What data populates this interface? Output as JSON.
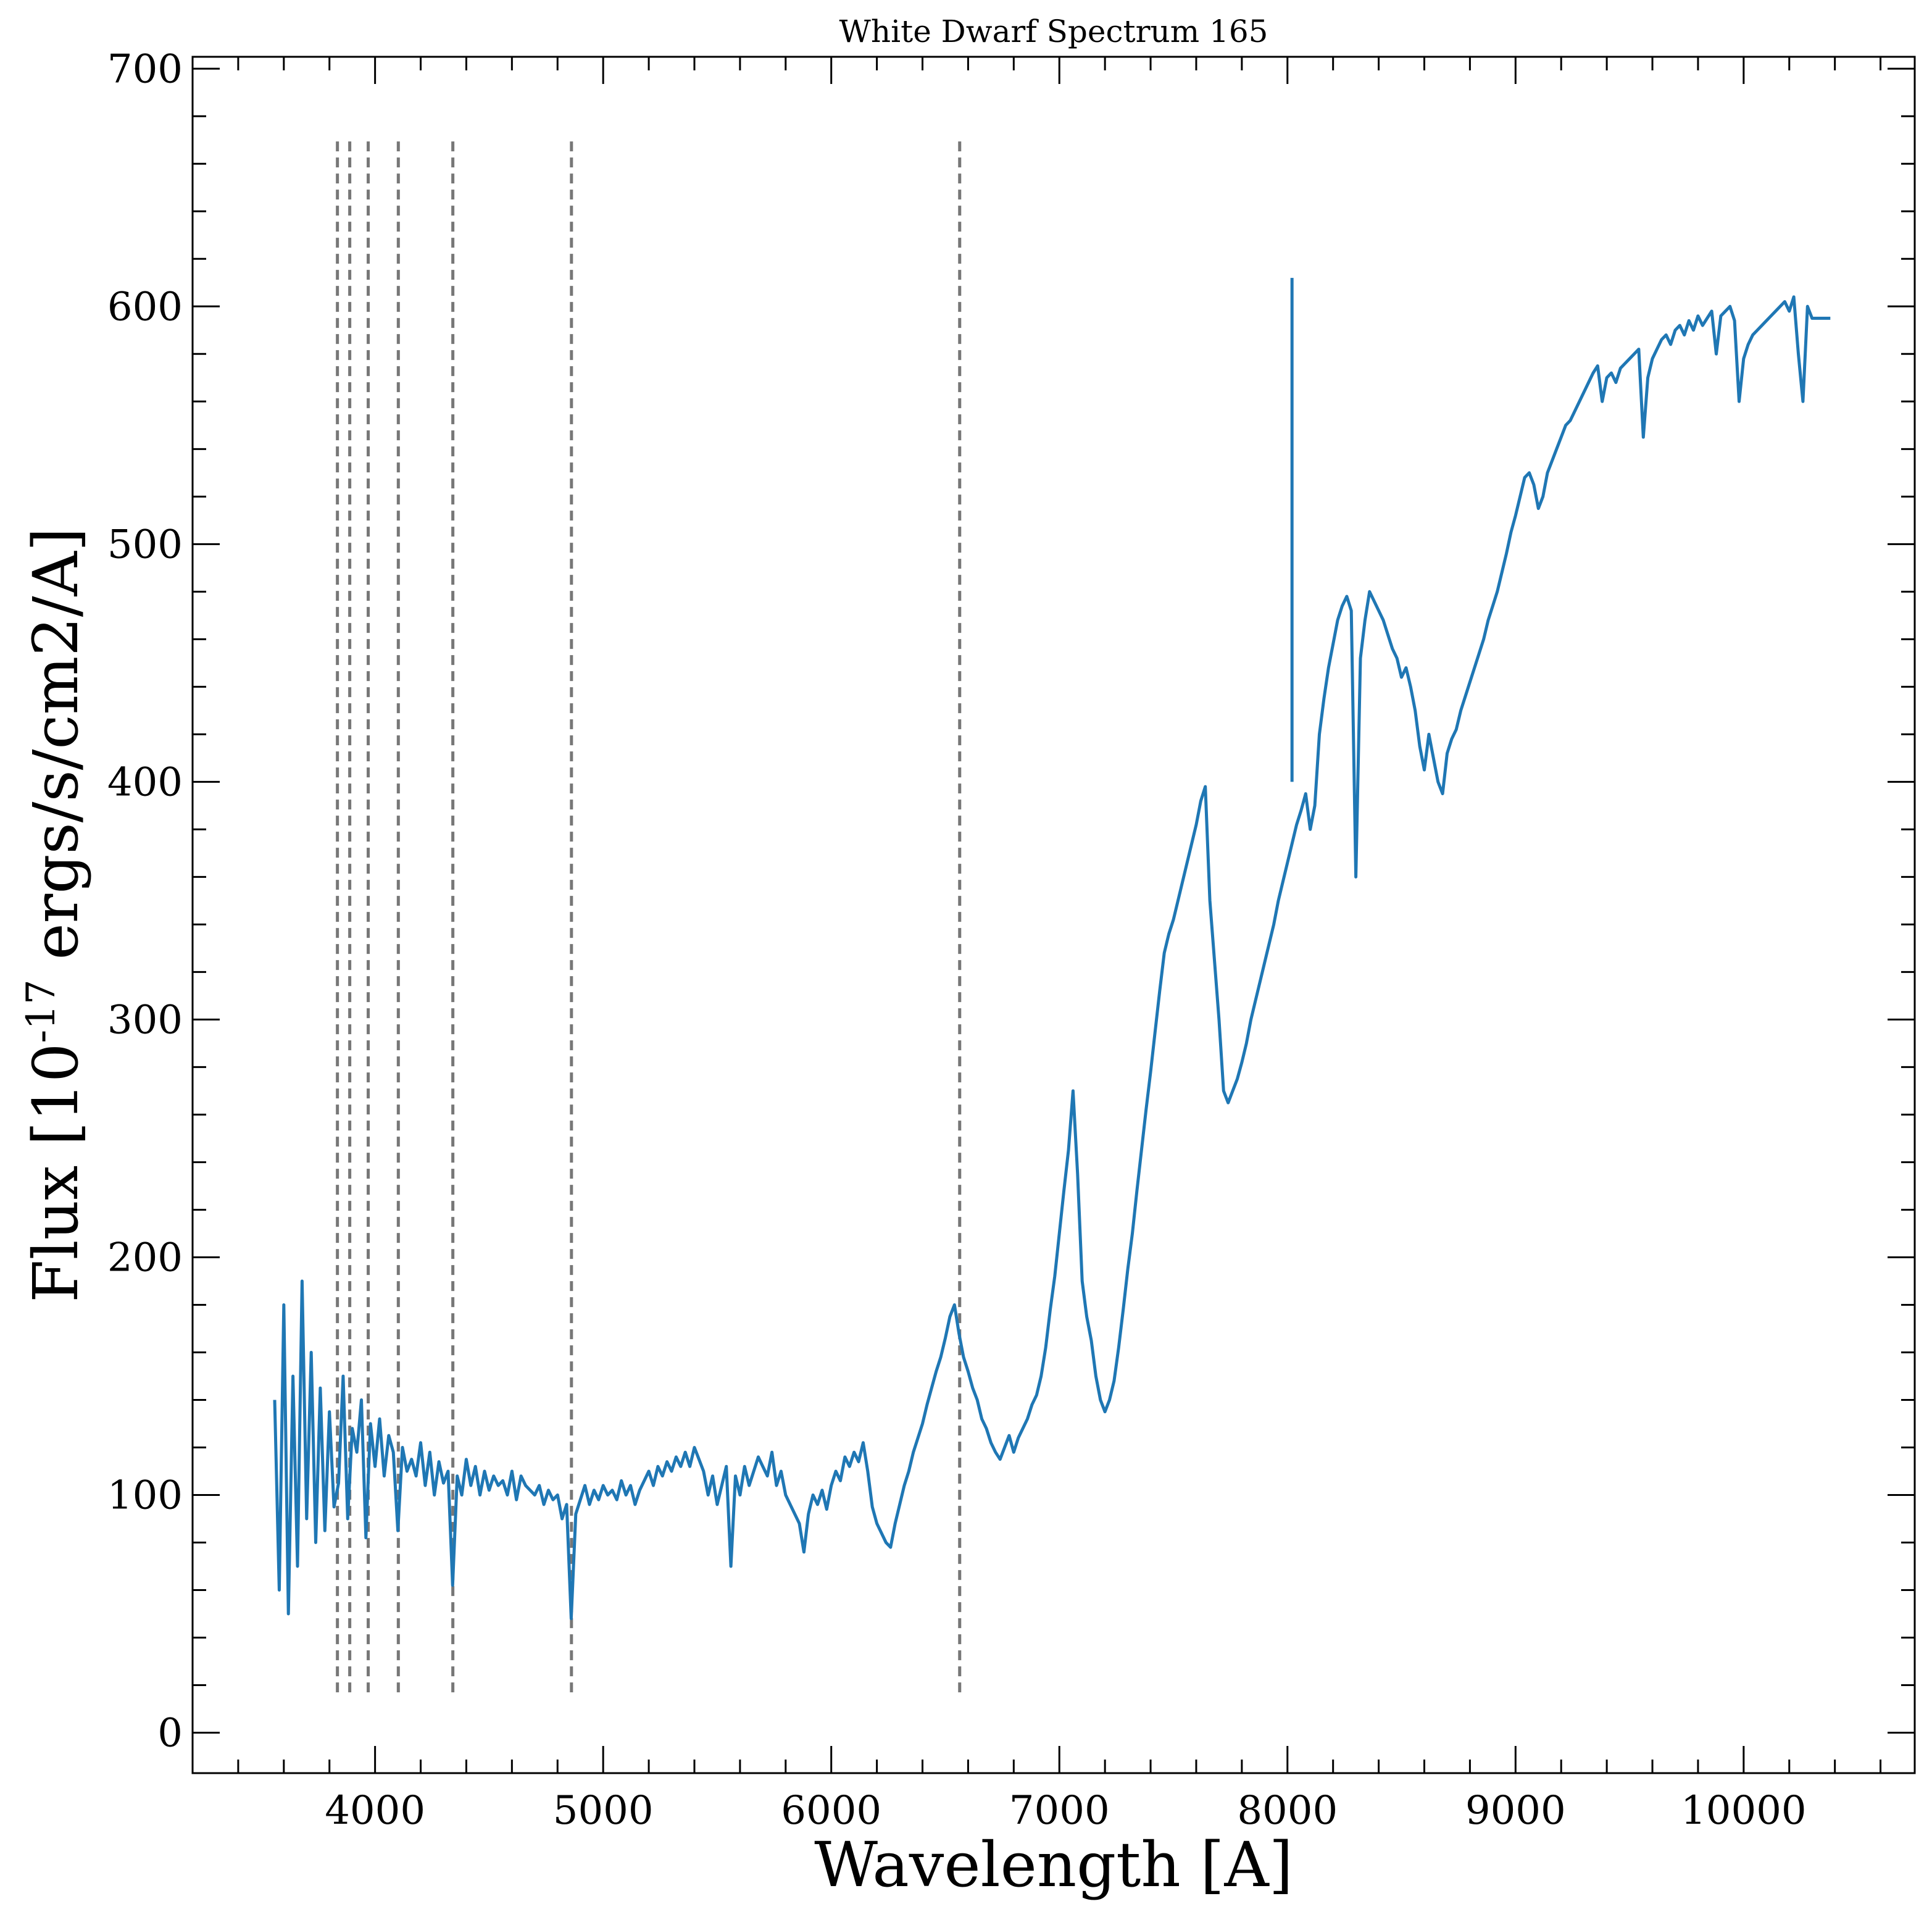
{
  "chart_data": {
    "type": "line",
    "title": "White Dwarf Spectrum 165",
    "xlabel": "Wavelength [A]",
    "ylabel": {
      "prefix": "Flux [10",
      "exponent": "-17",
      "suffix": " ergs/s/cm2/A]"
    },
    "xlim": [
      3200,
      10750
    ],
    "ylim": [
      -17,
      705
    ],
    "xticks": [
      4000,
      5000,
      6000,
      7000,
      8000,
      9000,
      10000
    ],
    "yticks": [
      0,
      100,
      200,
      300,
      400,
      500,
      600,
      700
    ],
    "x_minor_step": 200,
    "y_minor_step": 20,
    "grid": false,
    "legend": "none",
    "colors": {
      "spectrum": "#1f77b4",
      "reference_lines": "#777777"
    },
    "reference_lines": {
      "x": [
        3835,
        3889,
        3970,
        4102,
        4341,
        4861,
        6563
      ],
      "y_range": [
        17,
        670
      ],
      "style": "dashed"
    },
    "series": [
      {
        "x": [
          3560,
          3580,
          3600,
          3620,
          3640,
          3660,
          3680,
          3700,
          3720,
          3740,
          3760,
          3780,
          3800,
          3820,
          3840,
          3860,
          3880,
          3900,
          3920,
          3940,
          3960,
          3980,
          4000,
          4020,
          4040,
          4060,
          4080,
          4100,
          4120,
          4140,
          4160,
          4180,
          4200,
          4220,
          4240,
          4260,
          4280,
          4300,
          4320,
          4340,
          4360,
          4380,
          4400,
          4420,
          4440,
          4460,
          4480,
          4500,
          4520,
          4540,
          4560,
          4580,
          4600,
          4620,
          4640,
          4660,
          4680,
          4700,
          4720,
          4740,
          4760,
          4780,
          4800,
          4820,
          4840,
          4860,
          4880,
          4900,
          4920,
          4940,
          4960,
          4980,
          5000,
          5020,
          5040,
          5060,
          5080,
          5100,
          5120,
          5140,
          5160,
          5180,
          5200,
          5220,
          5240,
          5260,
          5280,
          5300,
          5320,
          5340,
          5360,
          5380,
          5400,
          5420,
          5440,
          5460,
          5480,
          5500,
          5520,
          5540,
          5560,
          5580,
          5600,
          5620,
          5640,
          5660,
          5680,
          5700,
          5720,
          5740,
          5760,
          5780,
          5800,
          5820,
          5840,
          5860,
          5880,
          5900,
          5920,
          5940,
          5960,
          5980,
          6000,
          6020,
          6040,
          6060,
          6080,
          6100,
          6120,
          6140,
          6160,
          6180,
          6200,
          6220,
          6240,
          6260,
          6280,
          6300,
          6320,
          6340,
          6360,
          6380,
          6400,
          6420,
          6440,
          6460,
          6480,
          6500,
          6520,
          6540,
          6560,
          6580,
          6600,
          6620,
          6640,
          6660,
          6680,
          6700,
          6720,
          6740,
          6760,
          6780,
          6800,
          6820,
          6840,
          6860,
          6880,
          6900,
          6920,
          6940,
          6960,
          6980,
          7000,
          7020,
          7040,
          7060,
          7080,
          7100,
          7120,
          7140,
          7160,
          7180,
          7200,
          7220,
          7240,
          7260,
          7280,
          7300,
          7320,
          7340,
          7360,
          7380,
          7400,
          7420,
          7440,
          7460,
          7480,
          7500,
          7520,
          7540,
          7560,
          7580,
          7600,
          7620,
          7640,
          7660,
          7680,
          7700,
          7720,
          7740,
          7760,
          7780,
          7800,
          7820,
          7840,
          7860,
          7880,
          7900,
          7920,
          7940,
          7960,
          7980,
          8000,
          8020,
          8040,
          8060,
          8080,
          8100,
          8120,
          8140,
          8160,
          8180,
          8200,
          8220,
          8240,
          8260,
          8280,
          8300,
          8320,
          8340,
          8360,
          8380,
          8400,
          8420,
          8440,
          8460,
          8480,
          8500,
          8520,
          8540,
          8560,
          8580,
          8600,
          8620,
          8640,
          8660,
          8680,
          8700,
          8720,
          8740,
          8760,
          8780,
          8800,
          8820,
          8840,
          8860,
          8880,
          8900,
          8920,
          8940,
          8960,
          8980,
          9000,
          9020,
          9040,
          9060,
          9080,
          9100,
          9120,
          9140,
          9160,
          9180,
          9200,
          9220,
          9240,
          9260,
          9280,
          9300,
          9320,
          9340,
          9360,
          9380,
          9400,
          9420,
          9440,
          9460,
          9480,
          9500,
          9520,
          9540,
          9560,
          9580,
          9600,
          9620,
          9640,
          9660,
          9680,
          9700,
          9720,
          9740,
          9760,
          9780,
          9800,
          9820,
          9840,
          9860,
          9880,
          9900,
          9920,
          9940,
          9960,
          9980,
          10000,
          10020,
          10040,
          10060,
          10080,
          10100,
          10120,
          10140,
          10160,
          10180,
          10200,
          10220,
          10240,
          10260,
          10280,
          10300,
          10320,
          10340,
          10360,
          10380
        ],
        "y": [
          140,
          60,
          180,
          50,
          150,
          70,
          190,
          90,
          160,
          80,
          145,
          85,
          135,
          95,
          105,
          150,
          90,
          128,
          118,
          140,
          82,
          130,
          112,
          132,
          108,
          125,
          118,
          85,
          120,
          110,
          115,
          108,
          122,
          104,
          118,
          100,
          114,
          105,
          110,
          62,
          108,
          100,
          115,
          104,
          112,
          100,
          110,
          102,
          108,
          104,
          106,
          100,
          110,
          98,
          108,
          104,
          102,
          100,
          104,
          96,
          102,
          98,
          100,
          90,
          96,
          48,
          92,
          98,
          104,
          96,
          102,
          98,
          104,
          100,
          102,
          98,
          106,
          100,
          104,
          96,
          102,
          106,
          110,
          104,
          112,
          108,
          114,
          110,
          116,
          112,
          118,
          112,
          120,
          115,
          110,
          100,
          108,
          96,
          104,
          112,
          70,
          108,
          100,
          112,
          104,
          110,
          116,
          112,
          108,
          118,
          104,
          110,
          100,
          96,
          92,
          88,
          76,
          92,
          100,
          96,
          102,
          94,
          104,
          110,
          106,
          116,
          112,
          118,
          114,
          122,
          110,
          95,
          88,
          84,
          80,
          78,
          88,
          96,
          104,
          110,
          118,
          124,
          130,
          138,
          145,
          152,
          158,
          166,
          175,
          180,
          168,
          158,
          152,
          145,
          140,
          132,
          128,
          122,
          118,
          115,
          120,
          125,
          118,
          124,
          128,
          132,
          138,
          142,
          150,
          162,
          178,
          192,
          210,
          228,
          245,
          270,
          235,
          190,
          175,
          165,
          150,
          140,
          135,
          140,
          148,
          162,
          178,
          195,
          210,
          228,
          245,
          262,
          278,
          295,
          312,
          328,
          336,
          342,
          350,
          358,
          366,
          374,
          382,
          392,
          398,
          350,
          325,
          300,
          270,
          265,
          270,
          275,
          282,
          290,
          300,
          308,
          316,
          324,
          332,
          340,
          350,
          358,
          366,
          374,
          382,
          388,
          395,
          380,
          390,
          420,
          435,
          448,
          458,
          468,
          474,
          478,
          472,
          360,
          452,
          468,
          480,
          476,
          472,
          468,
          462,
          456,
          452,
          444,
          448,
          440,
          430,
          415,
          405,
          420,
          410,
          400,
          395,
          412,
          418,
          422,
          430,
          436,
          442,
          448,
          454,
          460,
          468,
          474,
          480,
          488,
          496,
          505,
          512,
          520,
          528,
          530,
          525,
          515,
          520,
          530,
          535,
          540,
          545,
          550,
          552,
          556,
          560,
          564,
          568,
          572,
          575,
          560,
          570,
          572,
          568,
          574,
          576,
          578,
          580,
          582,
          545,
          570,
          578,
          582,
          586,
          588,
          584,
          590,
          592,
          588,
          594,
          590,
          596,
          592,
          595,
          598,
          580,
          596,
          598,
          600,
          594,
          560,
          578,
          584,
          588,
          590,
          592,
          594,
          596,
          598,
          600,
          602,
          598,
          604,
          580,
          560,
          600,
          595,
          595,
          595,
          595,
          595
        ]
      }
    ],
    "spikes": [
      {
        "x": 8020,
        "y": 612
      }
    ]
  }
}
